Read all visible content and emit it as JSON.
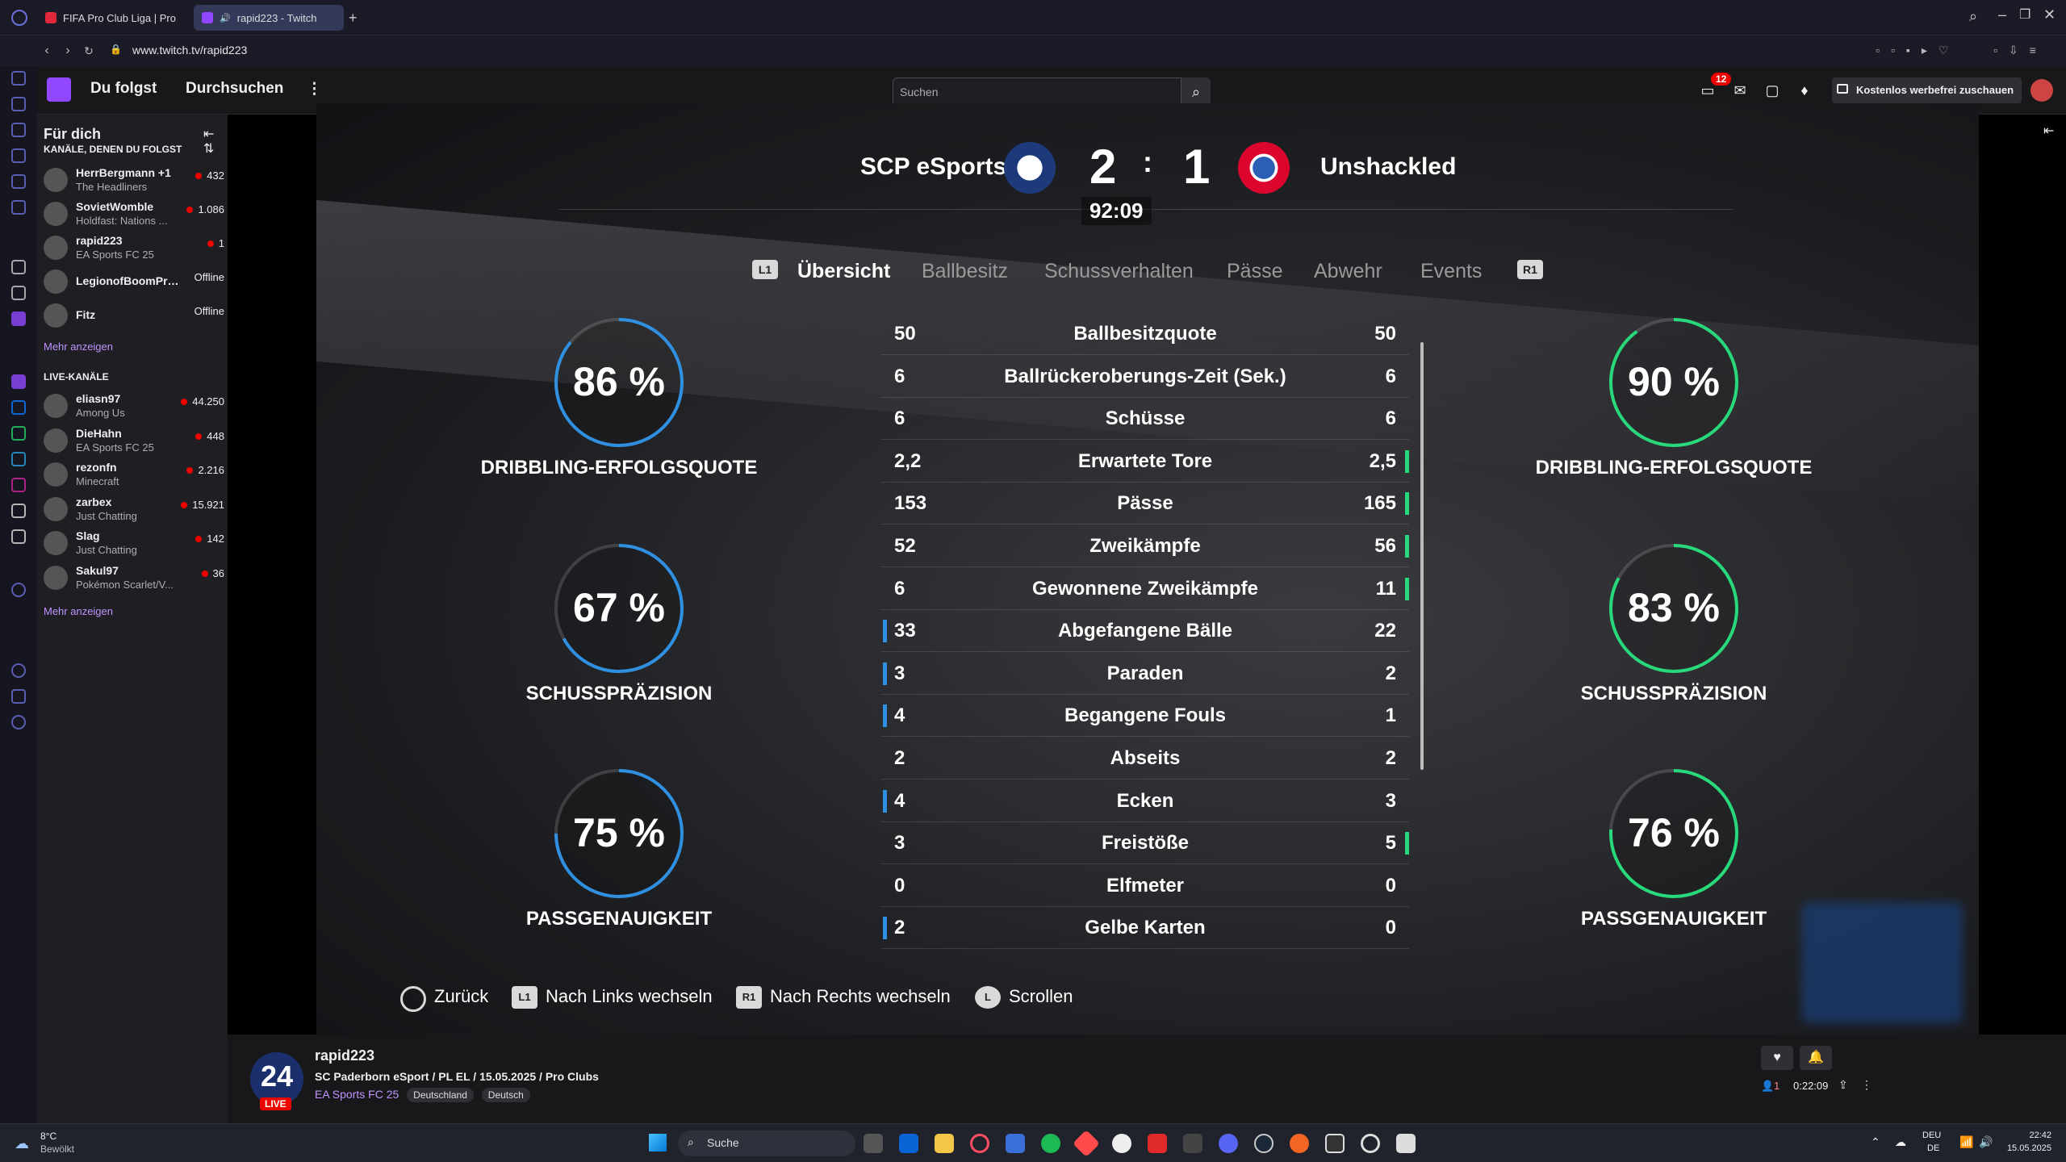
{
  "browser": {
    "tabs": [
      {
        "label": "FIFA Pro Club Liga | Pro Cl..."
      },
      {
        "label": "rapid223 - Twitch"
      }
    ],
    "url": "www.twitch.tv/rapid223"
  },
  "twitch_header": {
    "nav_following": "Du folgst",
    "nav_browse": "Durchsuchen",
    "search_placeholder": "Suchen",
    "notification_count": "12",
    "adfree_label": "Kostenlos werbefrei zuschauen"
  },
  "sidebar": {
    "for_you": "Für dich",
    "followed_heading": "KANÄLE, DENEN DU FOLGST",
    "followed": [
      {
        "name": "HerrBergmann +1",
        "game": "The Headliners",
        "viewers": "432",
        "live": true
      },
      {
        "name": "SovietWomble",
        "game": "Holdfast: Nations ...",
        "viewers": "1.086",
        "live": true
      },
      {
        "name": "rapid223",
        "game": "EA Sports FC 25",
        "viewers": "1",
        "live": true
      },
      {
        "name": "LegionofBoomPro...",
        "game": "",
        "viewers": "Offline",
        "live": false
      },
      {
        "name": "Fitz",
        "game": "",
        "viewers": "Offline",
        "live": false
      }
    ],
    "show_more_1": "Mehr anzeigen",
    "live_heading": "LIVE-KANÄLE",
    "live": [
      {
        "name": "eliasn97",
        "game": "Among Us",
        "viewers": "44.250"
      },
      {
        "name": "DieHahn",
        "game": "EA Sports FC 25",
        "viewers": "448"
      },
      {
        "name": "rezonfn",
        "game": "Minecraft",
        "viewers": "2.216"
      },
      {
        "name": "zarbex",
        "game": "Just Chatting",
        "viewers": "15.921"
      },
      {
        "name": "Slag",
        "game": "Just Chatting",
        "viewers": "142"
      },
      {
        "name": "Sakul97",
        "game": "Pokémon Scarlet/V...",
        "viewers": "36"
      }
    ],
    "show_more_2": "Mehr anzeigen"
  },
  "match": {
    "home_team": "SCP eSports",
    "away_team": "Unshackled",
    "home_score": "2",
    "separator": ":",
    "away_score": "1",
    "clock": "92:09",
    "tab_left_button": "L1",
    "tab_right_button": "R1",
    "tabs": [
      "Übersicht",
      "Ballbesitz",
      "Schussverhalten",
      "Pässe",
      "Abwehr",
      "Events"
    ],
    "active_tab": "Übersicht",
    "stats": [
      {
        "label": "Ballbesitzquote",
        "home": "50",
        "away": "50",
        "lead": "none"
      },
      {
        "label": "Ballrückeroberungs-Zeit (Sek.)",
        "home": "6",
        "away": "6",
        "lead": "none"
      },
      {
        "label": "Schüsse",
        "home": "6",
        "away": "6",
        "lead": "none"
      },
      {
        "label": "Erwartete Tore",
        "home": "2,2",
        "away": "2,5",
        "lead": "away"
      },
      {
        "label": "Pässe",
        "home": "153",
        "away": "165",
        "lead": "away"
      },
      {
        "label": "Zweikämpfe",
        "home": "52",
        "away": "56",
        "lead": "away"
      },
      {
        "label": "Gewonnene Zweikämpfe",
        "home": "6",
        "away": "11",
        "lead": "away"
      },
      {
        "label": "Abgefangene Bälle",
        "home": "33",
        "away": "22",
        "lead": "home"
      },
      {
        "label": "Paraden",
        "home": "3",
        "away": "2",
        "lead": "home"
      },
      {
        "label": "Begangene Fouls",
        "home": "4",
        "away": "1",
        "lead": "home"
      },
      {
        "label": "Abseits",
        "home": "2",
        "away": "2",
        "lead": "none"
      },
      {
        "label": "Ecken",
        "home": "4",
        "away": "3",
        "lead": "home"
      },
      {
        "label": "Freistöße",
        "home": "3",
        "away": "5",
        "lead": "away"
      },
      {
        "label": "Elfmeter",
        "home": "0",
        "away": "0",
        "lead": "none"
      },
      {
        "label": "Gelbe Karten",
        "home": "2",
        "away": "0",
        "lead": "home"
      }
    ],
    "home_rings": [
      {
        "value": "86 %",
        "pct": 86,
        "label": "DRIBBLING-ERFOLGSQUOTE"
      },
      {
        "value": "67 %",
        "pct": 67,
        "label": "SCHUSSPRÄZISION"
      },
      {
        "value": "75 %",
        "pct": 75,
        "label": "PASSGENAUIGKEIT"
      }
    ],
    "away_rings": [
      {
        "value": "90 %",
        "pct": 90,
        "label": "DRIBBLING-ERFOLGSQUOTE"
      },
      {
        "value": "83 %",
        "pct": 83,
        "label": "SCHUSSPRÄZISION"
      },
      {
        "value": "76 %",
        "pct": 76,
        "label": "PASSGENAUIGKEIT"
      }
    ],
    "hints": {
      "back": "Zurück",
      "left_btn": "L1",
      "left": "Nach Links wechseln",
      "right_btn": "R1",
      "right": "Nach Rechts wechseln",
      "scroll_btn": "L",
      "scroll": "Scrollen"
    },
    "colors": {
      "home": "#2f8fe0",
      "away": "#27d97a"
    }
  },
  "stream_info": {
    "avatar_text": "24",
    "live_label": "LIVE",
    "channel": "rapid223",
    "title": "SC Paderborn eSport / PL EL / 15.05.2025 / Pro Clubs",
    "game": "EA Sports FC 25",
    "tags": [
      "Deutschland",
      "Deutsch"
    ],
    "viewers": "1",
    "uptime": "0:22:09"
  },
  "taskbar": {
    "weather_temp": "8°C",
    "weather_desc": "Bewölkt",
    "search": "Suche",
    "lang1": "DEU",
    "lang2": "DE",
    "time": "22:42",
    "date": "15.05.2025"
  }
}
